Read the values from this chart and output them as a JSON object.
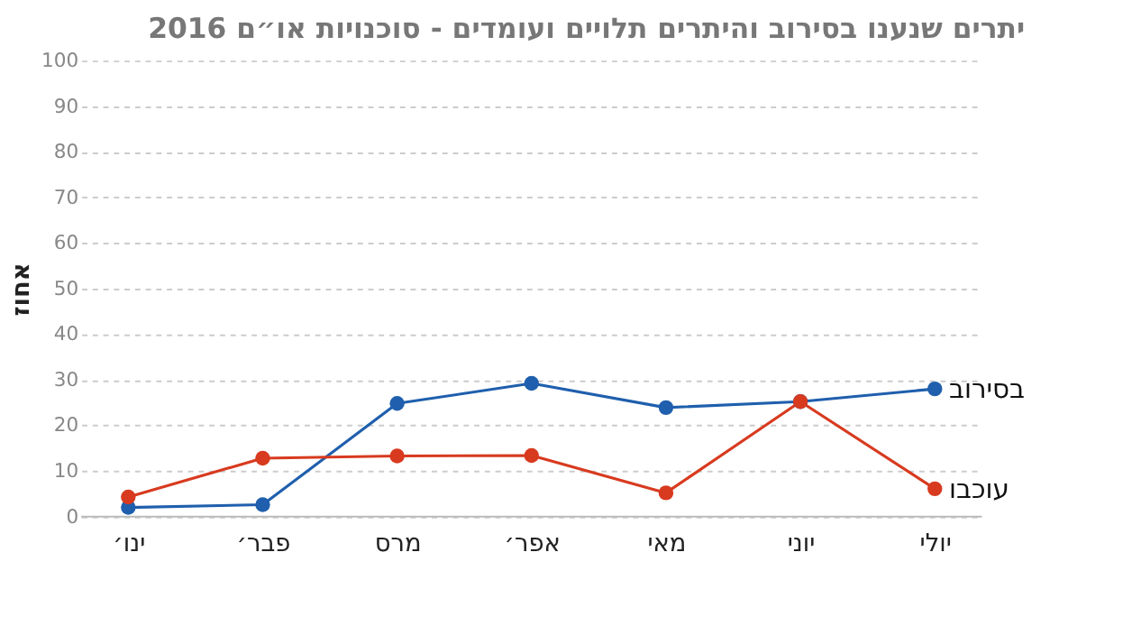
{
  "chart_data": {
    "type": "line",
    "title": "יתרים שנענו בסירוב והיתרים תלויים ועומדים - סוכנויות או״ם 2016",
    "ylabel": "אחוז",
    "categories": [
      "ינו׳",
      "פבר׳",
      "מרס",
      "אפר׳",
      "מאי",
      "יוני",
      "יולי"
    ],
    "series": [
      {
        "name": "בסירוב",
        "color": "#1f5fad",
        "values": [
          2,
          2.6,
          24.8,
          29.2,
          23.9,
          25.2,
          28
        ]
      },
      {
        "name": "עוכבו",
        "color": "#d83a1f",
        "values": [
          4.3,
          12.8,
          13.3,
          13.4,
          5.2,
          25.2,
          6.1
        ]
      }
    ],
    "ylim": [
      0,
      100
    ],
    "yticks": [
      0,
      10,
      20,
      30,
      40,
      50,
      60,
      70,
      80,
      90,
      100
    ],
    "grid": "y",
    "marker": "circle",
    "line_style": "solid",
    "legend": false
  }
}
